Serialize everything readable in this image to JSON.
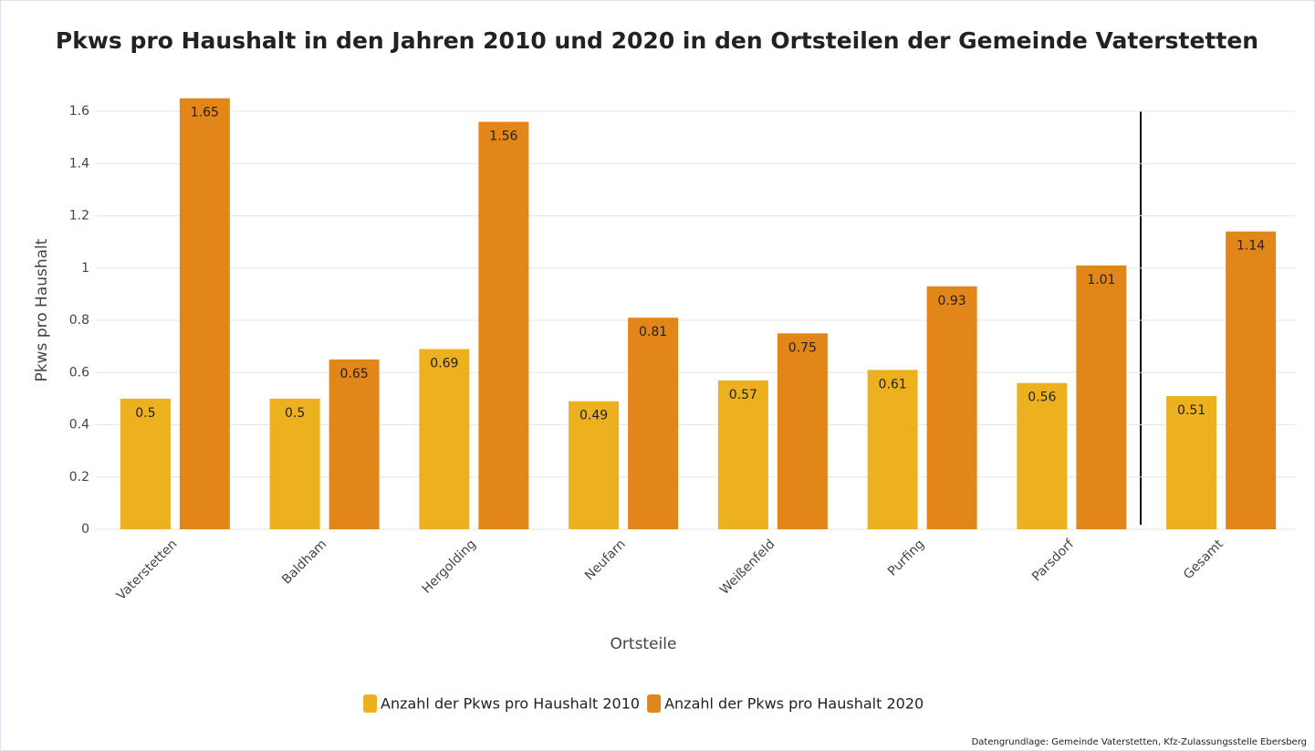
{
  "chart_data": {
    "type": "bar",
    "title": "Pkws pro Haushalt in den Jahren 2010 und 2020 in den Ortsteilen der Gemeinde Vaterstetten",
    "x_label": "Ortsteile",
    "y_label": "Pkws pro Haushalt",
    "source": "Datengrundlage: Gemeinde Vaterstetten, Kfz-Zulassungsstelle Ebersberg",
    "categories": [
      "Vaterstetten",
      "Baldham",
      "Hergolding",
      "Neufarn",
      "Weißenfeld",
      "Purfing",
      "Parsdorf",
      "Gesamt"
    ],
    "series": [
      {
        "name": "Anzahl der Pkws pro Haushalt 2010",
        "color": "#edb120",
        "values": [
          0.5,
          0.5,
          0.69,
          0.49,
          0.57,
          0.61,
          0.56,
          0.51
        ]
      },
      {
        "name": "Anzahl der Pkws pro Haushalt 2020",
        "color": "#e2861a",
        "values": [
          1.65,
          0.65,
          1.56,
          0.81,
          0.75,
          0.93,
          1.01,
          1.14
        ]
      }
    ],
    "ylim": [
      0,
      1.7
    ],
    "yticks": [
      0,
      0.2,
      0.4,
      0.6,
      0.8,
      1,
      1.2,
      1.4,
      1.6
    ],
    "grid": true,
    "legend": "bottom"
  }
}
